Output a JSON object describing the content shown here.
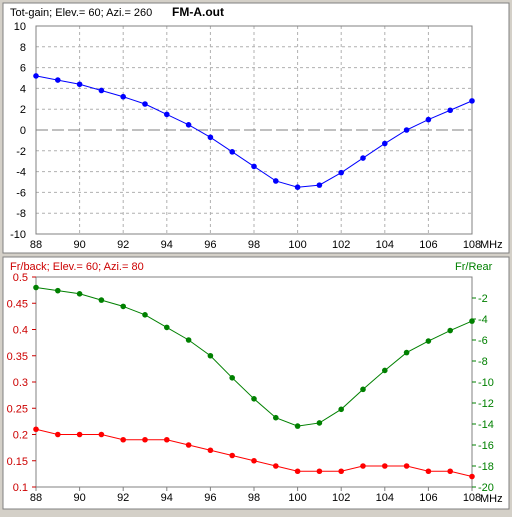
{
  "chart_data": [
    {
      "type": "line",
      "title": "FM-A.out",
      "subtitle": "Tot-gain; Elev.= 60; Azi.= 260",
      "xlabel": "MHz",
      "ylabel": "",
      "xlim": [
        88,
        108
      ],
      "ylim": [
        -10,
        10
      ],
      "x_ticks": [
        "88",
        "90",
        "92",
        "94",
        "96",
        "98",
        "100",
        "102",
        "104",
        "106",
        "108"
      ],
      "y_ticks": [
        "10",
        "8",
        "6",
        "4",
        "2",
        "0",
        "-2",
        "-4",
        "-6",
        "-8",
        "-10"
      ],
      "grid": true,
      "reference_line": 0,
      "x": [
        88,
        89,
        90,
        91,
        92,
        93,
        94,
        95,
        96,
        97,
        98,
        99,
        100,
        101,
        102,
        103,
        104,
        105,
        106,
        107,
        108
      ],
      "series": [
        {
          "color": "#0000ff",
          "values": [
            5.2,
            4.8,
            4.4,
            3.8,
            3.2,
            2.5,
            1.5,
            0.5,
            -0.7,
            -2.1,
            -3.5,
            -4.9,
            -5.5,
            -5.3,
            -4.1,
            -2.7,
            -1.3,
            0.0,
            1.0,
            1.9,
            2.8
          ]
        }
      ]
    },
    {
      "type": "line",
      "title": "",
      "subtitle": "Fr/back; Elev.= 60; Azi.= 80",
      "right_axis_label": "Fr/Rear",
      "xlabel": "MHz",
      "xlim": [
        88,
        108
      ],
      "ylim": [
        0.1,
        0.5
      ],
      "y2lim": [
        -20,
        0
      ],
      "x_ticks": [
        "88",
        "90",
        "92",
        "94",
        "96",
        "98",
        "100",
        "102",
        "104",
        "106",
        "108"
      ],
      "y_ticks": [
        "0.5",
        "0.45",
        "0.4",
        "0.35",
        "0.3",
        "0.25",
        "0.2",
        "0.15",
        "0.1"
      ],
      "y2_ticks": [
        "-2",
        "-4",
        "-6",
        "-8",
        "-10",
        "-12",
        "-14",
        "-16",
        "-18",
        "-20"
      ],
      "grid": false,
      "x": [
        88,
        89,
        90,
        91,
        92,
        93,
        94,
        95,
        96,
        97,
        98,
        99,
        100,
        101,
        102,
        103,
        104,
        105,
        106,
        107,
        108
      ],
      "series": [
        {
          "axis": "left",
          "color": "#ff0000",
          "values": [
            0.21,
            0.2,
            0.2,
            0.2,
            0.19,
            0.19,
            0.19,
            0.18,
            0.17,
            0.16,
            0.15,
            0.14,
            0.13,
            0.13,
            0.13,
            0.14,
            0.14,
            0.14,
            0.13,
            0.13,
            0.12
          ]
        },
        {
          "axis": "right",
          "color": "#008000",
          "values": [
            -1.0,
            -1.3,
            -1.6,
            -2.2,
            -2.8,
            -3.6,
            -4.8,
            -6.0,
            -7.5,
            -9.6,
            -11.6,
            -13.4,
            -14.2,
            -13.9,
            -12.6,
            -10.7,
            -8.9,
            -7.2,
            -6.1,
            -5.1,
            -4.2
          ]
        }
      ]
    }
  ]
}
